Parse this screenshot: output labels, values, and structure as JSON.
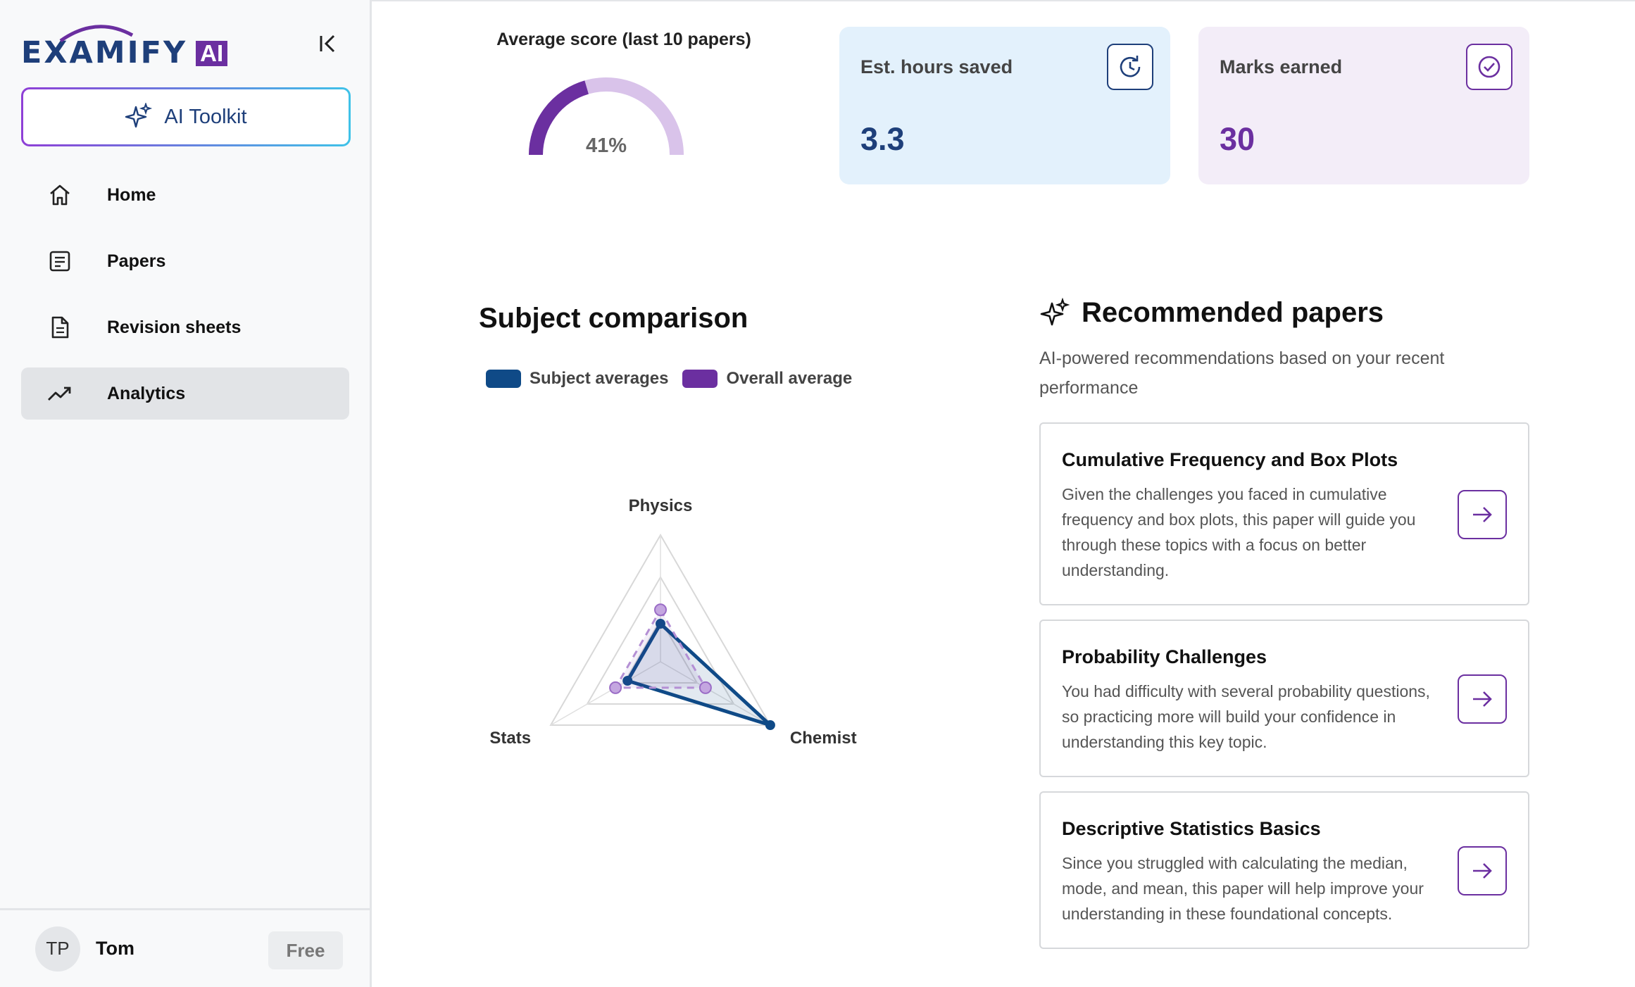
{
  "brand": {
    "logo_text": "EXAMIFY",
    "logo_badge": "AI"
  },
  "sidebar": {
    "toolkit_label": "AI Toolkit",
    "items": [
      {
        "label": "Home",
        "icon": "home-icon",
        "active": false
      },
      {
        "label": "Papers",
        "icon": "document-lines-icon",
        "active": false
      },
      {
        "label": "Revision sheets",
        "icon": "file-icon",
        "active": false
      },
      {
        "label": "Analytics",
        "icon": "trending-up-icon",
        "active": true
      }
    ]
  },
  "user": {
    "initials": "TP",
    "name": "Tom",
    "plan": "Free"
  },
  "stats": {
    "average": {
      "title": "Average score (last 10 papers)",
      "value_label": "41%",
      "value": 41
    },
    "hours_saved": {
      "label": "Est. hours saved",
      "value": "3.3",
      "icon": "clock-refresh-icon"
    },
    "marks_earned": {
      "label": "Marks earned",
      "value": "30",
      "icon": "check-circle-icon"
    }
  },
  "subject_comparison": {
    "title": "Subject comparison",
    "legend": [
      {
        "name": "Subject averages",
        "color": "#0f4a87"
      },
      {
        "name": "Overall average",
        "color": "#6b2fa0"
      }
    ]
  },
  "chart_data": {
    "type": "radar",
    "categories": [
      "Physics",
      "Chemistry",
      "Stats"
    ],
    "range": [
      0,
      100
    ],
    "grid_levels": [
      33.3,
      66.7,
      100
    ],
    "series": [
      {
        "name": "Subject averages",
        "values": [
          30,
          100,
          30
        ],
        "color": "#0f4a87"
      },
      {
        "name": "Overall average",
        "values": [
          41,
          41,
          41
        ],
        "color": "#6b2fa0"
      }
    ]
  },
  "recommended": {
    "title": "Recommended papers",
    "subtitle": "AI-powered recommendations based on your recent performance",
    "papers": [
      {
        "title": "Cumulative Frequency and Box Plots",
        "description": "Given the challenges you faced in cumulative frequency and box plots, this paper will guide you through these topics with a focus on better understanding."
      },
      {
        "title": "Probability Challenges",
        "description": "You had difficulty with several probability questions, so practicing more will build your confidence in understanding this key topic."
      },
      {
        "title": "Descriptive Statistics Basics",
        "description": "Since you struggled with calculating the median, mode, and mean, this paper will help improve your understanding in these foundational concepts."
      }
    ]
  }
}
